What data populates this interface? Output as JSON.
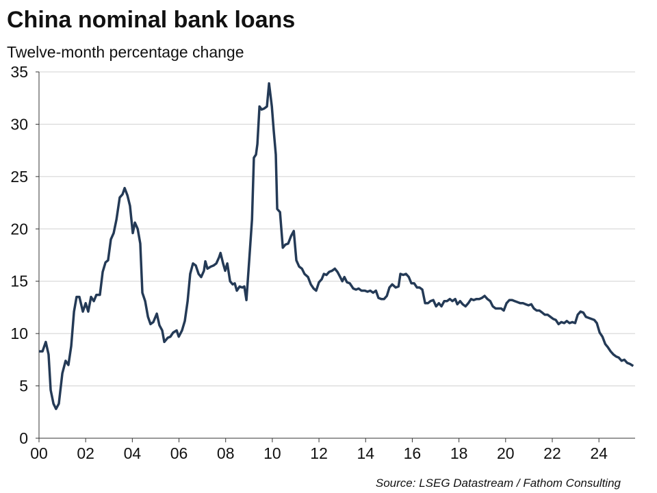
{
  "chart_data": {
    "type": "line",
    "title": "China nominal bank loans",
    "subtitle": "Twelve-month percentage change",
    "source": "Source: LSEG Datastream / Fathom Consulting",
    "x": [
      2000.0,
      2000.15,
      2000.29,
      2000.41,
      2000.5,
      2000.62,
      2000.73,
      2000.85,
      2001.0,
      2001.14,
      2001.26,
      2001.38,
      2001.5,
      2001.61,
      2001.73,
      2001.88,
      2002.0,
      2002.11,
      2002.23,
      2002.35,
      2002.46,
      2002.61,
      2002.73,
      2002.85,
      2002.96,
      2003.08,
      2003.2,
      2003.32,
      2003.46,
      2003.58,
      2003.67,
      2003.79,
      2003.9,
      2004.02,
      2004.11,
      2004.23,
      2004.34,
      2004.43,
      2004.55,
      2004.67,
      2004.78,
      2004.9,
      2005.05,
      2005.16,
      2005.28,
      2005.37,
      2005.52,
      2005.63,
      2005.75,
      2005.9,
      2005.99,
      2006.13,
      2006.25,
      2006.37,
      2006.48,
      2006.6,
      2006.72,
      2006.84,
      2006.95,
      2007.07,
      2007.13,
      2007.22,
      2007.37,
      2007.48,
      2007.6,
      2007.72,
      2007.78,
      2007.89,
      2007.98,
      2008.07,
      2008.19,
      2008.3,
      2008.39,
      2008.48,
      2008.6,
      2008.71,
      2008.8,
      2008.89,
      2009.01,
      2009.13,
      2009.21,
      2009.3,
      2009.36,
      2009.45,
      2009.54,
      2009.65,
      2009.77,
      2009.86,
      2009.98,
      2010.06,
      2010.15,
      2010.21,
      2010.33,
      2010.45,
      2010.56,
      2010.68,
      2010.8,
      2010.92,
      2011.03,
      2011.15,
      2011.27,
      2011.38,
      2011.53,
      2011.65,
      2011.77,
      2011.88,
      2012.0,
      2012.12,
      2012.21,
      2012.32,
      2012.44,
      2012.56,
      2012.68,
      2012.79,
      2012.91,
      2013.0,
      2013.09,
      2013.2,
      2013.32,
      2013.47,
      2013.59,
      2013.7,
      2013.82,
      2013.97,
      2014.08,
      2014.2,
      2014.32,
      2014.44,
      2014.55,
      2014.67,
      2014.79,
      2014.91,
      2015.02,
      2015.14,
      2015.29,
      2015.41,
      2015.49,
      2015.61,
      2015.73,
      2015.85,
      2015.96,
      2016.08,
      2016.2,
      2016.31,
      2016.43,
      2016.55,
      2016.67,
      2016.78,
      2016.9,
      2017.02,
      2017.14,
      2017.25,
      2017.37,
      2017.49,
      2017.61,
      2017.72,
      2017.84,
      2017.93,
      2018.05,
      2018.16,
      2018.28,
      2018.4,
      2018.52,
      2018.63,
      2018.75,
      2018.87,
      2018.98,
      2019.1,
      2019.22,
      2019.34,
      2019.45,
      2019.57,
      2019.69,
      2019.81,
      2019.92,
      2020.04,
      2020.16,
      2020.28,
      2020.39,
      2020.51,
      2020.63,
      2020.75,
      2020.86,
      2020.98,
      2021.1,
      2021.21,
      2021.33,
      2021.45,
      2021.57,
      2021.68,
      2021.8,
      2021.92,
      2022.04,
      2022.15,
      2022.27,
      2022.39,
      2022.51,
      2022.62,
      2022.74,
      2022.86,
      2022.98,
      2023.09,
      2023.21,
      2023.33,
      2023.44,
      2023.56,
      2023.68,
      2023.8,
      2023.91,
      2024.03,
      2024.15,
      2024.27,
      2024.38,
      2024.5,
      2024.62,
      2024.74,
      2024.85,
      2024.97,
      2025.09,
      2025.21,
      2025.33,
      2025.47
    ],
    "series": [
      {
        "name": "China nominal bank loans",
        "color": "#243a56",
        "values": [
          8.3,
          8.3,
          9.2,
          8.0,
          4.6,
          3.3,
          2.8,
          3.3,
          6.2,
          7.4,
          7.0,
          8.8,
          12.1,
          13.5,
          13.5,
          12.1,
          12.9,
          12.1,
          13.5,
          13.1,
          13.7,
          13.7,
          15.9,
          16.8,
          17.0,
          19.0,
          19.6,
          20.9,
          23.0,
          23.3,
          23.9,
          23.2,
          22.2,
          19.6,
          20.6,
          20.0,
          18.6,
          13.9,
          13.1,
          11.6,
          10.9,
          11.1,
          11.9,
          10.8,
          10.3,
          9.2,
          9.6,
          9.7,
          10.1,
          10.3,
          9.7,
          10.3,
          11.2,
          13.1,
          15.7,
          16.7,
          16.5,
          15.7,
          15.4,
          16.0,
          16.9,
          16.2,
          16.4,
          16.5,
          16.7,
          17.3,
          17.7,
          16.7,
          16.0,
          16.7,
          15.0,
          14.7,
          14.8,
          14.1,
          14.5,
          14.4,
          14.5,
          13.2,
          17.0,
          20.9,
          26.8,
          27.1,
          28.1,
          31.7,
          31.4,
          31.5,
          31.7,
          33.9,
          31.7,
          29.4,
          27.1,
          21.9,
          21.6,
          18.2,
          18.5,
          18.6,
          19.3,
          19.8,
          17.0,
          16.4,
          16.2,
          15.7,
          15.4,
          14.7,
          14.3,
          14.1,
          14.9,
          15.2,
          15.7,
          15.6,
          15.9,
          16.0,
          16.2,
          15.9,
          15.4,
          15.0,
          15.4,
          14.9,
          14.8,
          14.3,
          14.2,
          14.3,
          14.1,
          14.1,
          14.0,
          14.1,
          13.9,
          14.1,
          13.4,
          13.3,
          13.3,
          13.6,
          14.4,
          14.7,
          14.4,
          14.5,
          15.7,
          15.6,
          15.7,
          15.4,
          14.8,
          14.8,
          14.4,
          14.4,
          14.2,
          12.9,
          12.9,
          13.1,
          13.2,
          12.6,
          12.9,
          12.6,
          13.1,
          13.1,
          13.3,
          13.1,
          13.3,
          12.8,
          13.1,
          12.8,
          12.6,
          12.9,
          13.3,
          13.2,
          13.3,
          13.3,
          13.4,
          13.6,
          13.3,
          13.1,
          12.6,
          12.4,
          12.4,
          12.4,
          12.2,
          12.9,
          13.2,
          13.2,
          13.1,
          13.0,
          12.9,
          12.9,
          12.8,
          12.7,
          12.8,
          12.4,
          12.2,
          12.2,
          12.0,
          11.8,
          11.8,
          11.6,
          11.4,
          11.3,
          10.9,
          11.1,
          11.0,
          11.2,
          11.0,
          11.1,
          11.0,
          11.8,
          12.1,
          12.0,
          11.6,
          11.5,
          11.4,
          11.3,
          11.0,
          10.1,
          9.7,
          9.0,
          8.7,
          8.3,
          8.0,
          7.8,
          7.7,
          7.4,
          7.5,
          7.2,
          7.1,
          6.9
        ]
      }
    ],
    "xlim": [
      2000,
      2025.55
    ],
    "xticks": [
      {
        "value": 2000,
        "label": "00"
      },
      {
        "value": 2002,
        "label": "02"
      },
      {
        "value": 2004,
        "label": "04"
      },
      {
        "value": 2006,
        "label": "06"
      },
      {
        "value": 2008,
        "label": "08"
      },
      {
        "value": 2010,
        "label": "10"
      },
      {
        "value": 2012,
        "label": "12"
      },
      {
        "value": 2014,
        "label": "14"
      },
      {
        "value": 2016,
        "label": "16"
      },
      {
        "value": 2018,
        "label": "18"
      },
      {
        "value": 2020,
        "label": "20"
      },
      {
        "value": 2022,
        "label": "22"
      },
      {
        "value": 2024,
        "label": "24"
      }
    ],
    "ylim": [
      0,
      35
    ],
    "yticks": [
      0,
      5,
      10,
      15,
      20,
      25,
      30,
      35
    ],
    "grid": true
  }
}
